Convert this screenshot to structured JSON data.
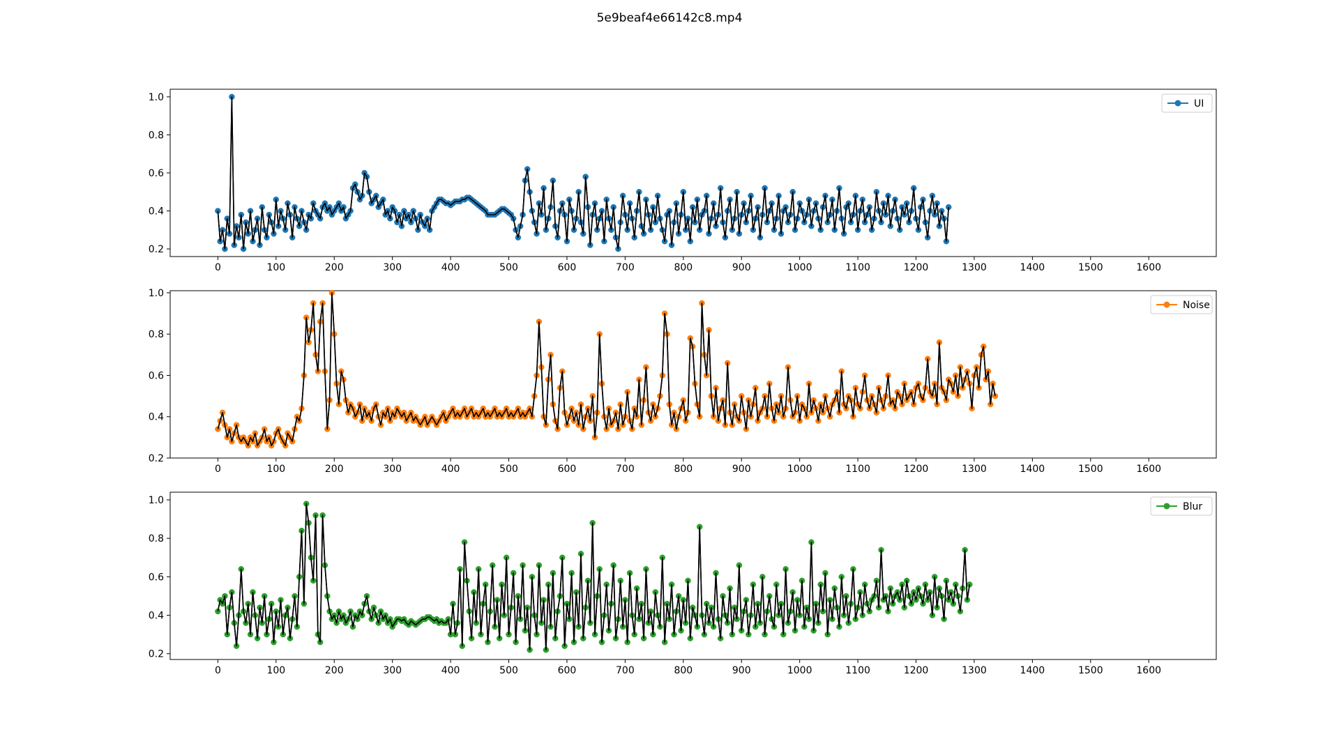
{
  "figure": {
    "title": "5e9beaf4e66142c8.mp4"
  },
  "chart_data": [
    {
      "type": "line",
      "name": "UI",
      "color": "#1f77b4",
      "line_color": "#000000",
      "marker": "circle",
      "legend_position": "top-right",
      "xlim": [
        -82,
        1716
      ],
      "ylim": [
        0.16,
        1.04
      ],
      "xticks": [
        0,
        100,
        200,
        300,
        400,
        500,
        600,
        700,
        800,
        900,
        1000,
        1100,
        1200,
        1300,
        1400,
        1500,
        1600
      ],
      "yticks": [
        0.2,
        0.4,
        0.6,
        0.8,
        1.0
      ],
      "ytick_labels": [
        "0.2",
        "0.4",
        "0.6",
        "0.8",
        "1.0"
      ],
      "x_start": 0,
      "x_step": 4,
      "values": [
        0.4,
        0.24,
        0.3,
        0.2,
        0.36,
        0.28,
        1.0,
        0.22,
        0.32,
        0.26,
        0.38,
        0.2,
        0.34,
        0.28,
        0.4,
        0.24,
        0.3,
        0.36,
        0.22,
        0.42,
        0.3,
        0.26,
        0.38,
        0.34,
        0.28,
        0.46,
        0.32,
        0.4,
        0.36,
        0.3,
        0.44,
        0.38,
        0.26,
        0.42,
        0.36,
        0.32,
        0.4,
        0.34,
        0.3,
        0.38,
        0.36,
        0.44,
        0.4,
        0.38,
        0.36,
        0.42,
        0.44,
        0.4,
        0.42,
        0.38,
        0.4,
        0.42,
        0.44,
        0.4,
        0.42,
        0.36,
        0.38,
        0.4,
        0.52,
        0.54,
        0.5,
        0.46,
        0.48,
        0.6,
        0.58,
        0.5,
        0.44,
        0.46,
        0.48,
        0.42,
        0.44,
        0.46,
        0.38,
        0.4,
        0.36,
        0.42,
        0.4,
        0.34,
        0.38,
        0.32,
        0.4,
        0.36,
        0.38,
        0.34,
        0.4,
        0.36,
        0.3,
        0.38,
        0.34,
        0.32,
        0.36,
        0.3,
        0.4,
        0.42,
        0.44,
        0.46,
        0.46,
        0.45,
        0.44,
        0.44,
        0.43,
        0.44,
        0.45,
        0.45,
        0.45,
        0.46,
        0.46,
        0.47,
        0.47,
        0.46,
        0.45,
        0.44,
        0.43,
        0.42,
        0.41,
        0.4,
        0.38,
        0.38,
        0.38,
        0.38,
        0.39,
        0.4,
        0.41,
        0.41,
        0.4,
        0.39,
        0.38,
        0.36,
        0.3,
        0.26,
        0.32,
        0.38,
        0.56,
        0.62,
        0.5,
        0.4,
        0.34,
        0.28,
        0.44,
        0.38,
        0.52,
        0.3,
        0.36,
        0.42,
        0.56,
        0.32,
        0.26,
        0.4,
        0.44,
        0.38,
        0.24,
        0.46,
        0.4,
        0.3,
        0.36,
        0.5,
        0.34,
        0.28,
        0.58,
        0.42,
        0.22,
        0.38,
        0.44,
        0.3,
        0.36,
        0.4,
        0.24,
        0.46,
        0.36,
        0.3,
        0.42,
        0.26,
        0.2,
        0.34,
        0.48,
        0.38,
        0.3,
        0.44,
        0.36,
        0.26,
        0.4,
        0.5,
        0.32,
        0.28,
        0.46,
        0.38,
        0.3,
        0.42,
        0.34,
        0.48,
        0.36,
        0.3,
        0.24,
        0.38,
        0.4,
        0.22,
        0.34,
        0.44,
        0.28,
        0.38,
        0.5,
        0.3,
        0.36,
        0.24,
        0.42,
        0.34,
        0.46,
        0.3,
        0.38,
        0.4,
        0.48,
        0.28,
        0.36,
        0.44,
        0.32,
        0.38,
        0.52,
        0.34,
        0.26,
        0.4,
        0.46,
        0.3,
        0.36,
        0.5,
        0.28,
        0.38,
        0.44,
        0.34,
        0.4,
        0.48,
        0.3,
        0.36,
        0.42,
        0.26,
        0.38,
        0.52,
        0.34,
        0.4,
        0.44,
        0.3,
        0.36,
        0.48,
        0.28,
        0.4,
        0.42,
        0.34,
        0.38,
        0.5,
        0.3,
        0.36,
        0.44,
        0.4,
        0.34,
        0.38,
        0.46,
        0.32,
        0.4,
        0.44,
        0.36,
        0.3,
        0.42,
        0.48,
        0.34,
        0.38,
        0.46,
        0.3,
        0.4,
        0.52,
        0.36,
        0.28,
        0.42,
        0.44,
        0.34,
        0.38,
        0.48,
        0.3,
        0.4,
        0.46,
        0.34,
        0.38,
        0.42,
        0.3,
        0.36,
        0.5,
        0.4,
        0.34,
        0.44,
        0.38,
        0.48,
        0.32,
        0.4,
        0.46,
        0.36,
        0.3,
        0.42,
        0.38,
        0.44,
        0.34,
        0.4,
        0.52,
        0.36,
        0.3,
        0.42,
        0.46,
        0.34,
        0.26,
        0.4,
        0.48,
        0.38,
        0.44,
        0.32,
        0.4,
        0.36,
        0.24,
        0.42
      ],
      "legend_label": "UI"
    },
    {
      "type": "line",
      "name": "Noise",
      "color": "#ff7f0e",
      "line_color": "#000000",
      "marker": "circle",
      "legend_position": "top-right",
      "xlim": [
        -82,
        1716
      ],
      "ylim": [
        0.2,
        1.01
      ],
      "xticks": [
        0,
        100,
        200,
        300,
        400,
        500,
        600,
        700,
        800,
        900,
        1000,
        1100,
        1200,
        1300,
        1400,
        1500,
        1600
      ],
      "yticks": [
        0.2,
        0.4,
        0.6,
        0.8,
        1.0
      ],
      "ytick_labels": [
        "0.2",
        "0.4",
        "0.6",
        "0.8",
        "1.0"
      ],
      "x_start": 0,
      "x_step": 4,
      "values": [
        0.34,
        0.38,
        0.42,
        0.36,
        0.3,
        0.34,
        0.28,
        0.32,
        0.36,
        0.3,
        0.28,
        0.3,
        0.28,
        0.26,
        0.3,
        0.28,
        0.32,
        0.26,
        0.28,
        0.3,
        0.34,
        0.28,
        0.3,
        0.26,
        0.28,
        0.32,
        0.34,
        0.3,
        0.28,
        0.26,
        0.32,
        0.3,
        0.28,
        0.34,
        0.4,
        0.38,
        0.44,
        0.6,
        0.88,
        0.76,
        0.82,
        0.95,
        0.7,
        0.62,
        0.86,
        0.95,
        0.62,
        0.34,
        0.48,
        1.0,
        0.8,
        0.56,
        0.46,
        0.62,
        0.58,
        0.48,
        0.42,
        0.46,
        0.44,
        0.4,
        0.42,
        0.46,
        0.38,
        0.44,
        0.4,
        0.42,
        0.38,
        0.44,
        0.46,
        0.4,
        0.36,
        0.42,
        0.4,
        0.44,
        0.38,
        0.42,
        0.4,
        0.44,
        0.42,
        0.4,
        0.42,
        0.38,
        0.4,
        0.42,
        0.38,
        0.4,
        0.38,
        0.36,
        0.38,
        0.4,
        0.36,
        0.38,
        0.4,
        0.38,
        0.36,
        0.38,
        0.4,
        0.42,
        0.38,
        0.4,
        0.42,
        0.44,
        0.4,
        0.42,
        0.4,
        0.42,
        0.44,
        0.4,
        0.42,
        0.44,
        0.4,
        0.42,
        0.4,
        0.42,
        0.44,
        0.4,
        0.42,
        0.4,
        0.42,
        0.44,
        0.4,
        0.42,
        0.4,
        0.42,
        0.44,
        0.4,
        0.42,
        0.4,
        0.42,
        0.44,
        0.4,
        0.42,
        0.4,
        0.42,
        0.44,
        0.4,
        0.5,
        0.6,
        0.86,
        0.64,
        0.4,
        0.36,
        0.58,
        0.7,
        0.46,
        0.38,
        0.34,
        0.54,
        0.62,
        0.42,
        0.36,
        0.4,
        0.44,
        0.38,
        0.42,
        0.36,
        0.46,
        0.34,
        0.4,
        0.44,
        0.38,
        0.5,
        0.3,
        0.42,
        0.8,
        0.56,
        0.4,
        0.34,
        0.44,
        0.36,
        0.38,
        0.42,
        0.34,
        0.46,
        0.36,
        0.4,
        0.52,
        0.38,
        0.34,
        0.44,
        0.4,
        0.58,
        0.36,
        0.48,
        0.64,
        0.42,
        0.38,
        0.46,
        0.4,
        0.44,
        0.5,
        0.6,
        0.9,
        0.8,
        0.46,
        0.36,
        0.42,
        0.34,
        0.4,
        0.44,
        0.48,
        0.38,
        0.42,
        0.78,
        0.74,
        0.56,
        0.46,
        0.4,
        0.95,
        0.7,
        0.6,
        0.82,
        0.5,
        0.4,
        0.54,
        0.38,
        0.44,
        0.48,
        0.36,
        0.66,
        0.42,
        0.36,
        0.46,
        0.4,
        0.38,
        0.5,
        0.42,
        0.34,
        0.48,
        0.4,
        0.46,
        0.54,
        0.38,
        0.42,
        0.44,
        0.5,
        0.4,
        0.56,
        0.44,
        0.38,
        0.46,
        0.42,
        0.5,
        0.4,
        0.44,
        0.64,
        0.48,
        0.4,
        0.42,
        0.5,
        0.38,
        0.46,
        0.44,
        0.4,
        0.56,
        0.42,
        0.48,
        0.44,
        0.38,
        0.46,
        0.42,
        0.5,
        0.44,
        0.4,
        0.46,
        0.48,
        0.52,
        0.42,
        0.62,
        0.46,
        0.44,
        0.5,
        0.48,
        0.4,
        0.54,
        0.46,
        0.44,
        0.52,
        0.6,
        0.48,
        0.44,
        0.5,
        0.46,
        0.42,
        0.54,
        0.48,
        0.44,
        0.5,
        0.6,
        0.46,
        0.48,
        0.44,
        0.52,
        0.5,
        0.46,
        0.56,
        0.48,
        0.5,
        0.52,
        0.46,
        0.54,
        0.56,
        0.5,
        0.48,
        0.54,
        0.68,
        0.52,
        0.5,
        0.56,
        0.46,
        0.76,
        0.54,
        0.52,
        0.48,
        0.58,
        0.56,
        0.52,
        0.6,
        0.5,
        0.64,
        0.54,
        0.58,
        0.62,
        0.56,
        0.44,
        0.6,
        0.64,
        0.54,
        0.7,
        0.74,
        0.58,
        0.62,
        0.46,
        0.56,
        0.5
      ]
    },
    {
      "type": "line",
      "name": "Blur",
      "color": "#2ca02c",
      "line_color": "#000000",
      "marker": "circle",
      "legend_position": "top-right",
      "xlim": [
        -82,
        1716
      ],
      "ylim": [
        0.17,
        1.04
      ],
      "xticks": [
        0,
        100,
        200,
        300,
        400,
        500,
        600,
        700,
        800,
        900,
        1000,
        1100,
        1200,
        1300,
        1400,
        1500,
        1600
      ],
      "yticks": [
        0.2,
        0.4,
        0.6,
        0.8,
        1.0
      ],
      "ytick_labels": [
        "0.2",
        "0.4",
        "0.6",
        "0.8",
        "1.0"
      ],
      "x_start": 0,
      "x_step": 4,
      "values": [
        0.42,
        0.48,
        0.46,
        0.5,
        0.3,
        0.44,
        0.52,
        0.36,
        0.24,
        0.4,
        0.64,
        0.42,
        0.36,
        0.46,
        0.3,
        0.52,
        0.4,
        0.28,
        0.44,
        0.36,
        0.5,
        0.3,
        0.38,
        0.46,
        0.26,
        0.42,
        0.34,
        0.48,
        0.3,
        0.4,
        0.44,
        0.28,
        0.38,
        0.5,
        0.34,
        0.6,
        0.84,
        0.46,
        0.98,
        0.88,
        0.7,
        0.58,
        0.92,
        0.3,
        0.26,
        0.92,
        0.66,
        0.5,
        0.42,
        0.38,
        0.4,
        0.36,
        0.42,
        0.38,
        0.4,
        0.36,
        0.38,
        0.42,
        0.34,
        0.4,
        0.38,
        0.42,
        0.4,
        0.46,
        0.5,
        0.42,
        0.38,
        0.44,
        0.4,
        0.36,
        0.42,
        0.38,
        0.4,
        0.36,
        0.38,
        0.34,
        0.36,
        0.38,
        0.38,
        0.37,
        0.38,
        0.36,
        0.35,
        0.37,
        0.36,
        0.35,
        0.36,
        0.37,
        0.38,
        0.38,
        0.39,
        0.39,
        0.38,
        0.37,
        0.38,
        0.36,
        0.37,
        0.36,
        0.36,
        0.38,
        0.3,
        0.46,
        0.3,
        0.36,
        0.64,
        0.24,
        0.78,
        0.58,
        0.42,
        0.28,
        0.52,
        0.36,
        0.64,
        0.3,
        0.46,
        0.56,
        0.26,
        0.42,
        0.66,
        0.34,
        0.48,
        0.28,
        0.56,
        0.4,
        0.7,
        0.3,
        0.44,
        0.62,
        0.26,
        0.5,
        0.38,
        0.66,
        0.32,
        0.44,
        0.22,
        0.6,
        0.4,
        0.3,
        0.66,
        0.36,
        0.48,
        0.22,
        0.56,
        0.34,
        0.62,
        0.28,
        0.42,
        0.5,
        0.7,
        0.24,
        0.46,
        0.38,
        0.62,
        0.26,
        0.52,
        0.34,
        0.72,
        0.28,
        0.44,
        0.58,
        0.36,
        0.88,
        0.3,
        0.5,
        0.64,
        0.26,
        0.4,
        0.56,
        0.32,
        0.46,
        0.66,
        0.28,
        0.38,
        0.58,
        0.34,
        0.48,
        0.26,
        0.62,
        0.4,
        0.3,
        0.54,
        0.38,
        0.46,
        0.28,
        0.64,
        0.36,
        0.42,
        0.3,
        0.52,
        0.4,
        0.34,
        0.7,
        0.26,
        0.46,
        0.38,
        0.56,
        0.3,
        0.42,
        0.5,
        0.32,
        0.48,
        0.36,
        0.58,
        0.28,
        0.44,
        0.4,
        0.34,
        0.86,
        0.4,
        0.3,
        0.46,
        0.36,
        0.44,
        0.34,
        0.62,
        0.38,
        0.28,
        0.5,
        0.4,
        0.36,
        0.54,
        0.3,
        0.44,
        0.38,
        0.66,
        0.32,
        0.42,
        0.48,
        0.3,
        0.4,
        0.56,
        0.34,
        0.46,
        0.36,
        0.6,
        0.3,
        0.42,
        0.5,
        0.38,
        0.34,
        0.56,
        0.4,
        0.46,
        0.3,
        0.64,
        0.36,
        0.42,
        0.52,
        0.32,
        0.48,
        0.4,
        0.58,
        0.34,
        0.44,
        0.38,
        0.78,
        0.32,
        0.46,
        0.36,
        0.56,
        0.42,
        0.62,
        0.3,
        0.48,
        0.38,
        0.54,
        0.44,
        0.34,
        0.6,
        0.4,
        0.5,
        0.36,
        0.46,
        0.64,
        0.38,
        0.44,
        0.52,
        0.4,
        0.56,
        0.46,
        0.42,
        0.48,
        0.5,
        0.58,
        0.44,
        0.74,
        0.48,
        0.5,
        0.42,
        0.54,
        0.46,
        0.5,
        0.52,
        0.48,
        0.56,
        0.44,
        0.58,
        0.5,
        0.46,
        0.52,
        0.48,
        0.54,
        0.5,
        0.46,
        0.56,
        0.48,
        0.52,
        0.4,
        0.6,
        0.44,
        0.54,
        0.5,
        0.38,
        0.58,
        0.48,
        0.52,
        0.46,
        0.56,
        0.5,
        0.42,
        0.54,
        0.74,
        0.48,
        0.56
      ]
    }
  ]
}
